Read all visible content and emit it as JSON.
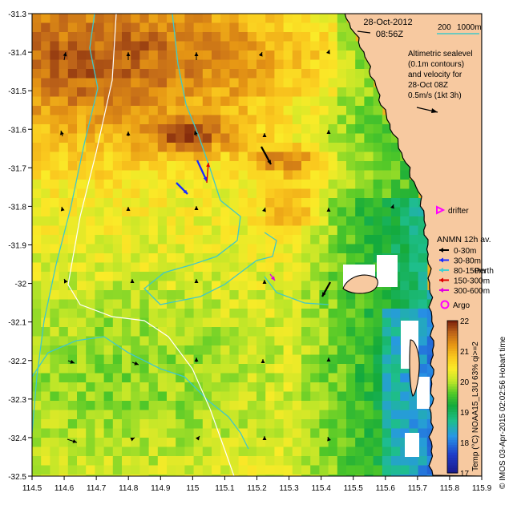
{
  "header": {
    "date": "28-Oct-2012",
    "time": "08:56Z",
    "scale": "200",
    "scale_unit": "1000m"
  },
  "info": {
    "lines": [
      "Altimetric sealevel",
      "(0.1m contours)",
      "and velocity for",
      "28-Oct 08Z",
      "0.5m/s (1kt 3h)"
    ]
  },
  "axes": {
    "x_ticks": [
      "114.5",
      "114.6",
      "114.7",
      "114.8",
      "114.9",
      "115",
      "115.1",
      "115.2",
      "115.3",
      "115.4",
      "115.5",
      "115.6",
      "115.7",
      "115.8",
      "115.9"
    ],
    "y_ticks": [
      "-31.3",
      "-31.4",
      "-31.5",
      "-31.6",
      "-31.7",
      "-31.8",
      "-31.9",
      "-32",
      "-32.1",
      "-32.2",
      "-32.3",
      "-32.4",
      "-32.5"
    ]
  },
  "labels": {
    "drifter": "drifter",
    "argo": "Argo",
    "perth": "Perth"
  },
  "anmn_legend": {
    "title": "ANMN 12h av.",
    "items": [
      {
        "label": "0-30m",
        "color": "#000000"
      },
      {
        "label": "30-80m",
        "color": "#1a2bff"
      },
      {
        "label": "80-150m",
        "color": "#40d0d0"
      },
      {
        "label": "150-300m",
        "color": "#e00000"
      },
      {
        "label": "300-600m",
        "color": "#e000e0"
      }
    ]
  },
  "colorbar": {
    "ticks": [
      "22",
      "21",
      "20",
      "19",
      "18",
      "17"
    ],
    "label": "Temp (°C) NOAA15_L3U 63% qi>=2",
    "range": [
      17,
      22
    ]
  },
  "credit": "© IMOS 03-Apr-2015 02:02:56 Hobart time",
  "colors": {
    "land": "#f7c9a0",
    "coastline": "#000000",
    "isobath": "#40c8c8",
    "track": "#ffffff"
  }
}
